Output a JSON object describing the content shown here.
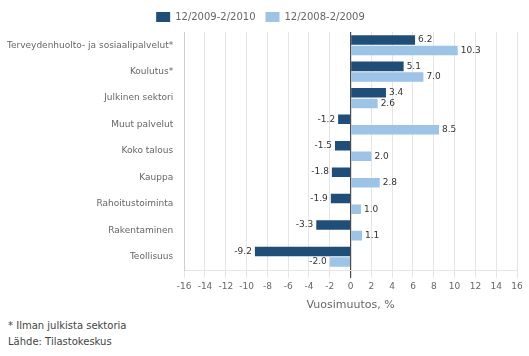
{
  "chart_data": {
    "type": "bar",
    "orientation": "horizontal",
    "categories": [
      "Terveydenhuolto- ja sosiaalipalvelut*",
      "Koulutus*",
      "Julkinen sektori",
      "Muut palvelut",
      "Koko talous",
      "Kauppa",
      "Rahoitustoiminta",
      "Rakentaminen",
      "Teollisuus"
    ],
    "series": [
      {
        "name": "12/2009-2/2010",
        "color": "#1F4E79",
        "values": [
          6.2,
          5.1,
          3.4,
          -1.2,
          -1.5,
          -1.8,
          -1.9,
          -3.3,
          -9.2
        ]
      },
      {
        "name": "12/2008-2/2009",
        "color": "#9DC3E6",
        "values": [
          10.3,
          7.0,
          2.6,
          8.5,
          2.0,
          2.8,
          1.0,
          1.1,
          -2.0
        ],
        "value_labels": [
          "10.3",
          "7.0",
          "2.6",
          "8.5",
          "2.0",
          "2.8",
          "1.0",
          "1.1",
          "-2.0"
        ]
      }
    ],
    "xlabel": "Vuosimuutos, %",
    "xlim": [
      -16,
      16
    ],
    "xticks": [
      -16,
      -14,
      -12,
      -10,
      -8,
      -6,
      -4,
      -2,
      0,
      2,
      4,
      6,
      8,
      10,
      12,
      14,
      16
    ],
    "grid": true,
    "legend": "top",
    "data_labels": true,
    "annotations": [
      "* Ilman julkista sektoria",
      "Lähde: Tilastokeskus"
    ]
  }
}
